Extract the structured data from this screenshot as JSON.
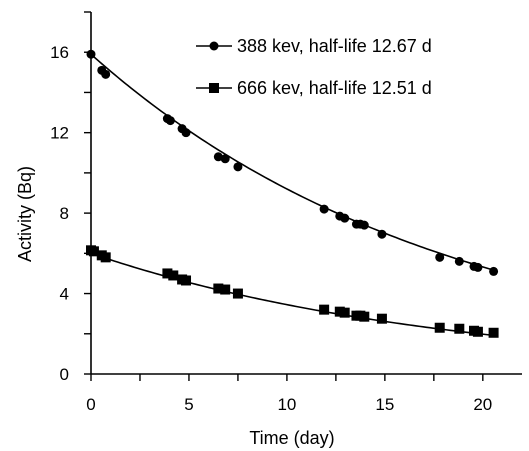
{
  "chart_data": {
    "type": "scatter",
    "title": "",
    "xlabel": "Time (day)",
    "ylabel": "Activity (Bq)",
    "xlim": [
      0,
      22
    ],
    "ylim": [
      0,
      18
    ],
    "xticks": [
      0,
      5,
      10,
      15,
      20
    ],
    "yticks": [
      0,
      4,
      8,
      12,
      16
    ],
    "xtick_labels": [
      "0",
      "5",
      "10",
      "15",
      "20"
    ],
    "ytick_labels": [
      "0",
      "4",
      "8",
      "12",
      "16"
    ],
    "grid": false,
    "legend_position": "top-right",
    "series": [
      {
        "name": "388 kev, half-life 12.67 d",
        "marker": "circle",
        "color": "#000000",
        "x": [
          0.0,
          0.55,
          0.75,
          3.9,
          4.05,
          4.65,
          4.85,
          6.5,
          6.85,
          7.5,
          11.9,
          12.7,
          12.95,
          13.55,
          13.75,
          13.95,
          14.85,
          17.8,
          18.8,
          19.55,
          19.75,
          20.55
        ],
        "y": [
          15.9,
          15.1,
          14.9,
          12.7,
          12.6,
          12.2,
          12.0,
          10.8,
          10.7,
          10.3,
          8.2,
          7.85,
          7.75,
          7.45,
          7.45,
          7.4,
          6.95,
          5.8,
          5.6,
          5.35,
          5.3,
          5.1
        ]
      },
      {
        "name": "666 kev, half-life 12.51 d",
        "marker": "square",
        "color": "#000000",
        "x": [
          0.0,
          0.15,
          0.55,
          0.75,
          3.9,
          4.2,
          4.65,
          4.85,
          6.5,
          6.85,
          7.5,
          11.9,
          12.7,
          12.95,
          13.55,
          13.75,
          13.95,
          14.85,
          17.8,
          18.8,
          19.55,
          19.75,
          20.55
        ],
        "y": [
          6.15,
          6.1,
          5.9,
          5.8,
          5.0,
          4.9,
          4.7,
          4.65,
          4.25,
          4.2,
          4.0,
          3.2,
          3.1,
          3.05,
          2.9,
          2.9,
          2.85,
          2.75,
          2.3,
          2.25,
          2.15,
          2.1,
          2.05
        ]
      }
    ],
    "fits": [
      {
        "series": "388 kev, half-life 12.67 d",
        "a0": 15.9,
        "half_life": 12.67
      },
      {
        "series": "666 kev, half-life 12.51 d",
        "a0": 6.0,
        "half_life": 12.51
      }
    ]
  }
}
